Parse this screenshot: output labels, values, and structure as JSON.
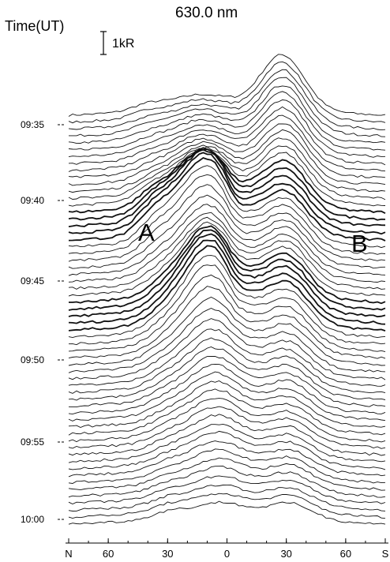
{
  "chart_data": {
    "type": "line",
    "title": "630.0 nm",
    "ylabel": "Time(UT)",
    "scale_label": "1kR",
    "time_ticks": [
      "09:35",
      "09:40",
      "09:45",
      "09:50",
      "09:55",
      "10:00"
    ],
    "x_ticks": [
      "N",
      "60",
      "30",
      "0",
      "30",
      "60",
      "S"
    ],
    "x_tick_values": [
      80,
      60,
      30,
      0,
      -30,
      -60,
      -80
    ],
    "xlim": [
      80,
      -80
    ],
    "annotations": [
      "A",
      "B"
    ],
    "profile_count": 60
  }
}
